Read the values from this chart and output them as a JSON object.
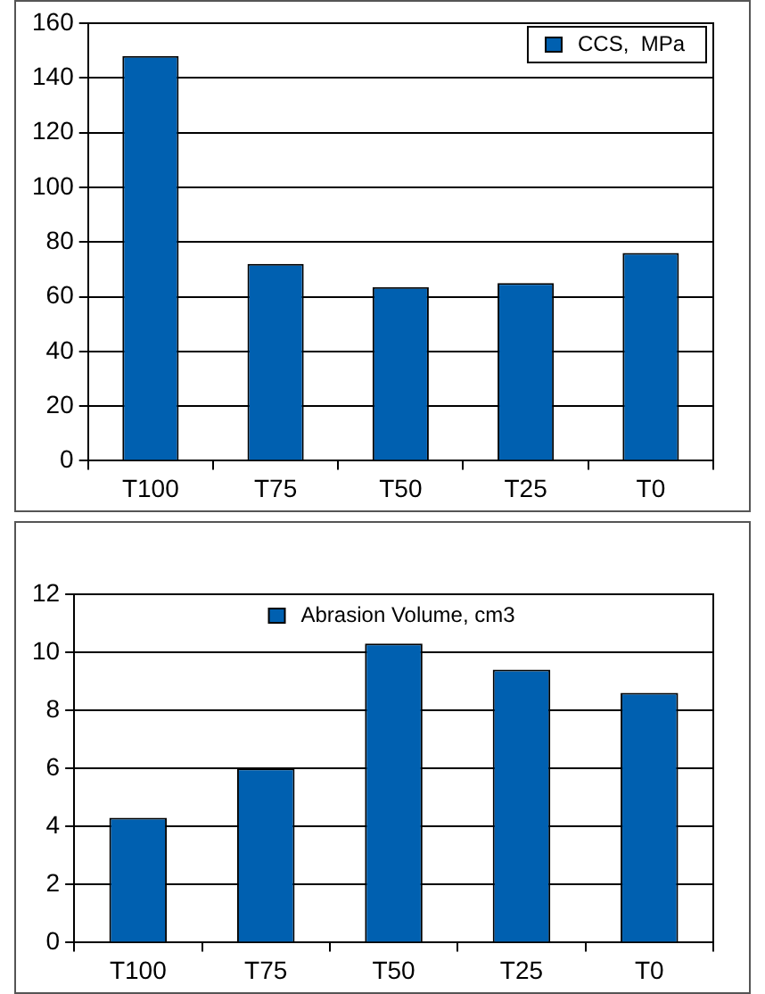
{
  "chart_data": [
    {
      "type": "bar",
      "categories": [
        "T100",
        "T75",
        "T50",
        "T25",
        "T0"
      ],
      "series": [
        {
          "name": "CCS,  MPa",
          "color": "#0060b0",
          "values": [
            148,
            72,
            63.5,
            65,
            76
          ]
        }
      ],
      "ylim": [
        0,
        160
      ],
      "yticks": [
        0,
        20,
        40,
        60,
        80,
        100,
        120,
        140,
        160
      ],
      "grid": "y",
      "legend": "top right"
    },
    {
      "type": "bar",
      "categories": [
        "T100",
        "T75",
        "T50",
        "T25",
        "T0"
      ],
      "series": [
        {
          "name": "Abrasion Volume, cm3",
          "color": "#0060b0",
          "values": [
            4.3,
            6.0,
            10.3,
            9.4,
            8.6
          ]
        }
      ],
      "ylim": [
        0,
        12
      ],
      "yticks": [
        0,
        2,
        4,
        6,
        8,
        10,
        12
      ],
      "grid": "y",
      "legend": "top"
    }
  ]
}
